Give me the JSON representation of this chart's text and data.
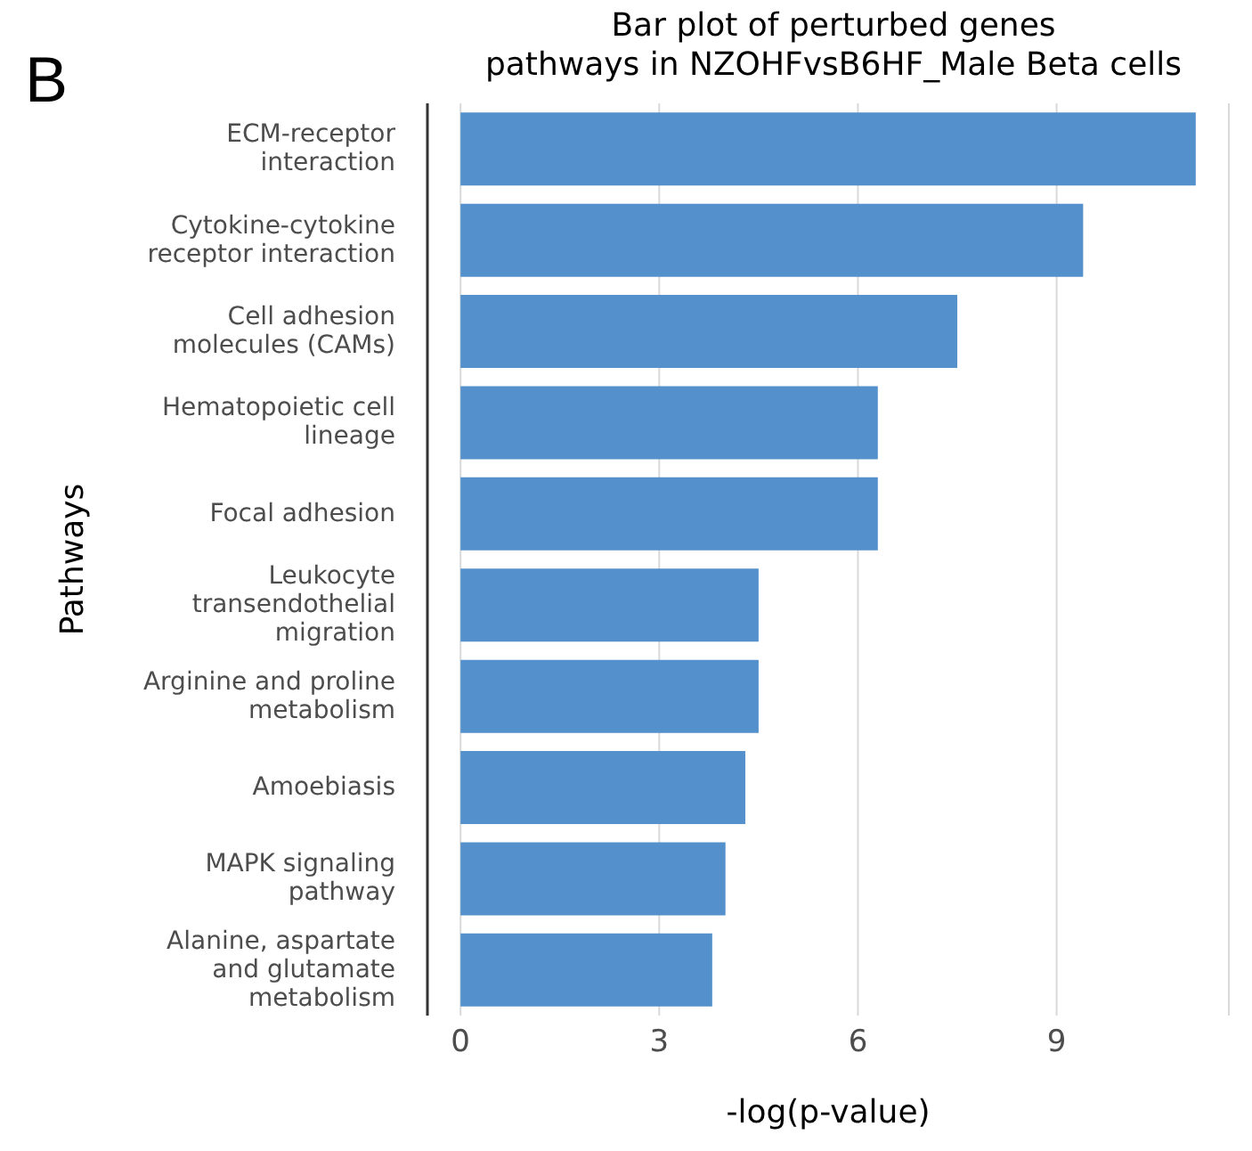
{
  "chart_data": {
    "type": "bar",
    "orientation": "horizontal",
    "title": "Bar plot of perturbed genes\npathways in NZOHFvsB6HF_Male Beta cells",
    "annotations": [
      "B"
    ],
    "xlabel": "-log(p-value)",
    "ylabel": "Pathways",
    "categories": [
      "ECM-receptor\ninteraction",
      "Cytokine-cytokine\nreceptor interaction",
      "Cell adhesion\nmolecules (CAMs)",
      "Hematopoietic cell\nlineage",
      "Focal adhesion",
      "Leukocyte\ntransendothelial\nmigration",
      "Arginine and proline\nmetabolism",
      "Amoebiasis",
      "MAPK signaling\npathway",
      "Alanine, aspartate\nand glutamate\nmetabolism"
    ],
    "values": [
      11.1,
      9.4,
      7.5,
      6.3,
      6.3,
      4.5,
      4.5,
      4.3,
      4.0,
      3.8
    ],
    "color": "#5390cc",
    "xlim": [
      -0.5,
      11.6
    ],
    "xticks": [
      0,
      3,
      6,
      9
    ],
    "grid": "x"
  }
}
